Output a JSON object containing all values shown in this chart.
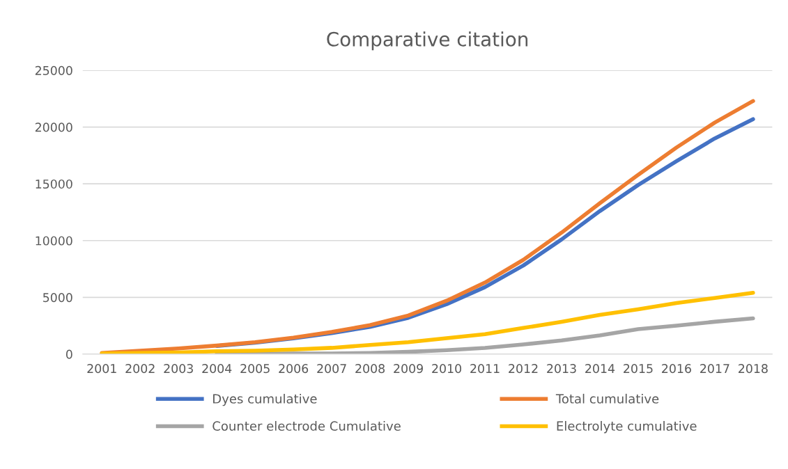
{
  "chart_data": {
    "type": "line",
    "title": "Comparative citation",
    "categories": [
      "2001",
      "2002",
      "2003",
      "2004",
      "2005",
      "2006",
      "2007",
      "2008",
      "2009",
      "2010",
      "2011",
      "2012",
      "2013",
      "2014",
      "2015",
      "2016",
      "2017",
      "2018"
    ],
    "series": [
      {
        "name": "Dyes cumulative",
        "color": "#4472c4",
        "values": [
          null,
          null,
          null,
          720,
          1000,
          1380,
          1850,
          2400,
          3200,
          4400,
          5900,
          7800,
          10100,
          12600,
          14900,
          17000,
          19000,
          20700
        ]
      },
      {
        "name": "Total cumulative",
        "color": "#ed7d31",
        "values": [
          100,
          300,
          500,
          750,
          1050,
          1450,
          1950,
          2550,
          3400,
          4700,
          6300,
          8300,
          10700,
          13300,
          15800,
          18200,
          20400,
          22300
        ]
      },
      {
        "name": "Counter electrode Cumulative",
        "color": "#a5a5a5",
        "values": [
          null,
          null,
          null,
          30,
          40,
          50,
          50,
          100,
          200,
          350,
          550,
          850,
          1200,
          1650,
          2200,
          2500,
          2850,
          3150
        ]
      },
      {
        "name": "Electrolyte cumulative",
        "color": "#ffc000",
        "values": [
          50,
          100,
          150,
          250,
          300,
          400,
          550,
          800,
          1050,
          1400,
          1750,
          2300,
          2850,
          3450,
          3950,
          4500,
          4950,
          5400
        ]
      }
    ],
    "ylim": [
      0,
      25000
    ],
    "yticks": [
      0,
      5000,
      10000,
      15000,
      20000,
      25000
    ],
    "grid": "y",
    "legend": "bottom",
    "marker": "none",
    "line_style": "solid"
  }
}
